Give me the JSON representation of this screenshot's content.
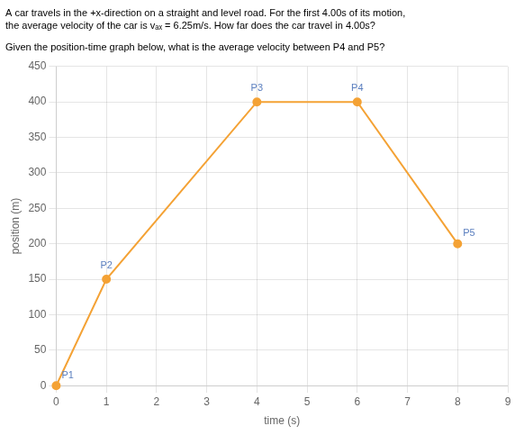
{
  "chart_data": {
    "type": "line",
    "title": [
      "A car travels in the +x-direction on a straight and level road. For the first 4.00s of its motion,",
      "the average velocity of the car is vₐₓ = 6.25m/s. How far does the car travel in 4.00s?"
    ],
    "subtitle": "Given the position-time graph below, what is the average velocity between P4 and P5?",
    "x": [
      0,
      1,
      4,
      6,
      8
    ],
    "values": [
      0,
      150,
      400,
      400,
      200
    ],
    "point_labels": [
      "P1",
      "P2",
      "P3",
      "P4",
      "P5"
    ],
    "color": "#F4A235",
    "marker": "circle",
    "xlabel": "time (s)",
    "ylabel": "position (m)",
    "xlim": [
      0,
      9
    ],
    "ylim": [
      0,
      450
    ],
    "xticks": [
      0,
      1,
      2,
      3,
      4,
      5,
      6,
      7,
      8,
      9
    ],
    "yticks": [
      0,
      50,
      100,
      150,
      200,
      250,
      300,
      350,
      400,
      450
    ],
    "grid": true
  }
}
